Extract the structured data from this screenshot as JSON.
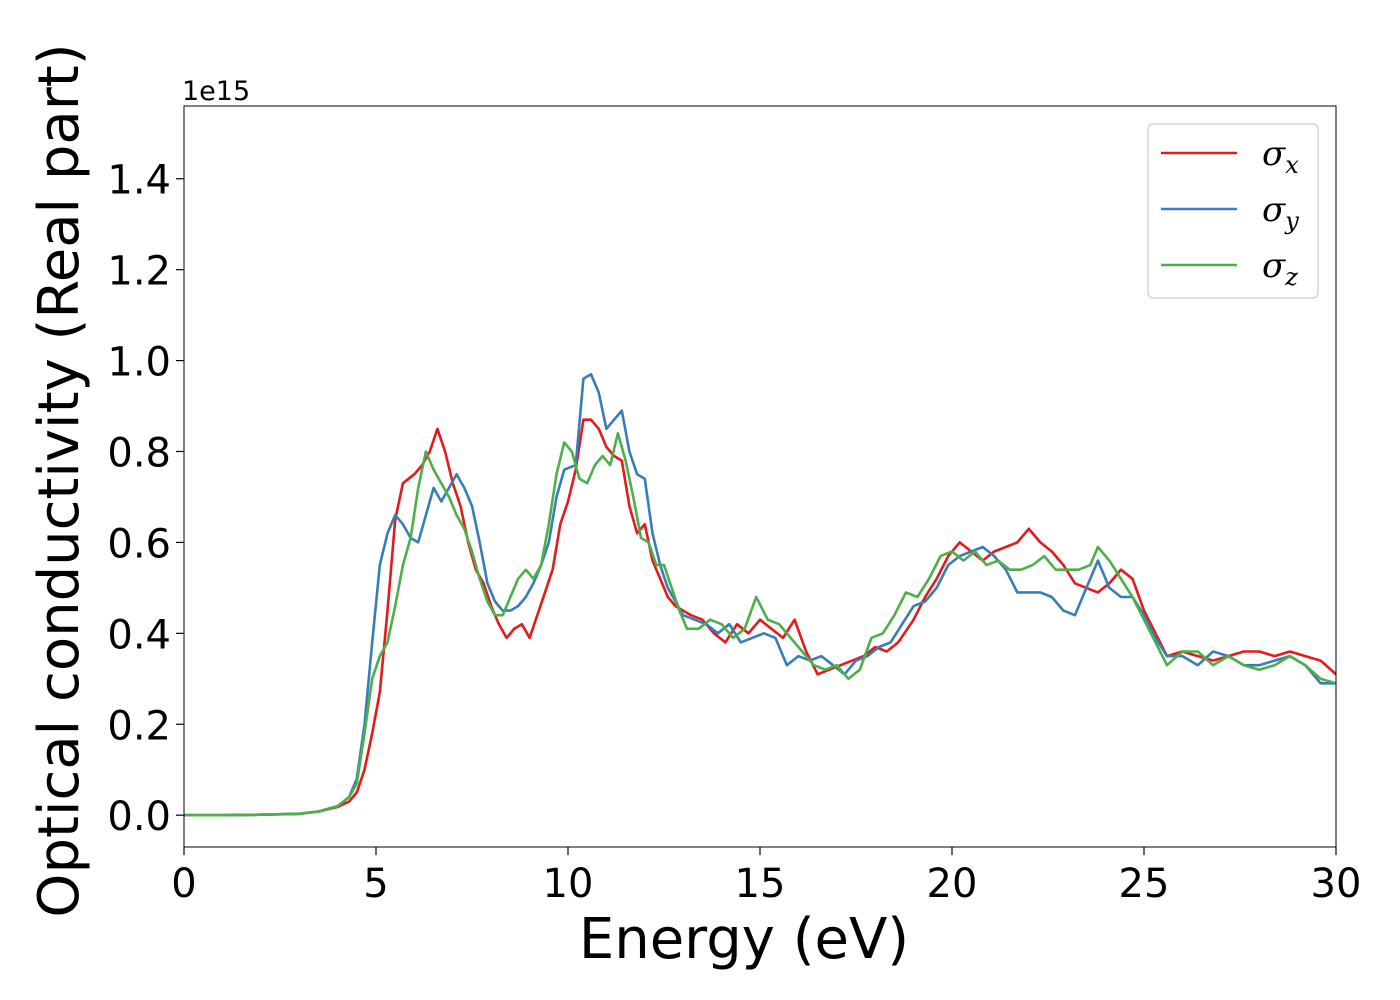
{
  "chart_data": {
    "type": "line",
    "title": "",
    "xlabel": "Energy (eV)",
    "ylabel": "Optical conductivity (Real part)",
    "y_offset_text": "1e15",
    "xlim": [
      0,
      30
    ],
    "ylim": [
      -0.07,
      1.56
    ],
    "y_scale_factor": 1000000000000000.0,
    "grid": false,
    "legend_position": "top-right",
    "x_ticks": [
      0,
      5,
      10,
      15,
      20,
      25,
      30
    ],
    "x_tick_labels": [
      "0",
      "5",
      "10",
      "15",
      "20",
      "25",
      "30"
    ],
    "y_ticks": [
      0.0,
      0.2,
      0.4,
      0.6,
      0.8,
      1.0,
      1.2,
      1.4
    ],
    "y_tick_labels": [
      "0.0",
      "0.2",
      "0.4",
      "0.6",
      "0.8",
      "1.0",
      "1.2",
      "1.4"
    ],
    "series": [
      {
        "name": "σx",
        "legend_symbol": "σ",
        "legend_subscript": "x",
        "color": "#e41a1c",
        "points": [
          [
            0,
            0
          ],
          [
            1,
            0
          ],
          [
            2,
            0.001
          ],
          [
            3,
            0.003
          ],
          [
            3.5,
            0.008
          ],
          [
            4,
            0.018
          ],
          [
            4.3,
            0.03
          ],
          [
            4.5,
            0.05
          ],
          [
            4.7,
            0.1
          ],
          [
            4.9,
            0.18
          ],
          [
            5.1,
            0.27
          ],
          [
            5.3,
            0.45
          ],
          [
            5.5,
            0.65
          ],
          [
            5.7,
            0.73
          ],
          [
            6,
            0.75
          ],
          [
            6.2,
            0.77
          ],
          [
            6.4,
            0.8
          ],
          [
            6.6,
            0.85
          ],
          [
            6.8,
            0.8
          ],
          [
            7,
            0.73
          ],
          [
            7.2,
            0.68
          ],
          [
            7.4,
            0.6
          ],
          [
            7.6,
            0.54
          ],
          [
            7.8,
            0.51
          ],
          [
            8,
            0.46
          ],
          [
            8.2,
            0.42
          ],
          [
            8.4,
            0.39
          ],
          [
            8.6,
            0.41
          ],
          [
            8.8,
            0.42
          ],
          [
            9,
            0.39
          ],
          [
            9.2,
            0.44
          ],
          [
            9.4,
            0.49
          ],
          [
            9.6,
            0.54
          ],
          [
            9.8,
            0.64
          ],
          [
            10,
            0.69
          ],
          [
            10.2,
            0.76
          ],
          [
            10.4,
            0.87
          ],
          [
            10.6,
            0.87
          ],
          [
            10.8,
            0.85
          ],
          [
            11,
            0.81
          ],
          [
            11.2,
            0.79
          ],
          [
            11.4,
            0.78
          ],
          [
            11.6,
            0.68
          ],
          [
            11.8,
            0.62
          ],
          [
            12,
            0.64
          ],
          [
            12.2,
            0.56
          ],
          [
            12.4,
            0.52
          ],
          [
            12.6,
            0.48
          ],
          [
            12.8,
            0.46
          ],
          [
            13,
            0.45
          ],
          [
            13.2,
            0.44
          ],
          [
            13.5,
            0.43
          ],
          [
            13.8,
            0.4
          ],
          [
            14.1,
            0.38
          ],
          [
            14.4,
            0.42
          ],
          [
            14.7,
            0.4
          ],
          [
            15,
            0.43
          ],
          [
            15.3,
            0.41
          ],
          [
            15.6,
            0.39
          ],
          [
            15.9,
            0.43
          ],
          [
            16.2,
            0.36
          ],
          [
            16.5,
            0.31
          ],
          [
            16.8,
            0.32
          ],
          [
            17.1,
            0.33
          ],
          [
            17.4,
            0.34
          ],
          [
            17.7,
            0.35
          ],
          [
            18,
            0.37
          ],
          [
            18.3,
            0.36
          ],
          [
            18.6,
            0.38
          ],
          [
            19,
            0.43
          ],
          [
            19.3,
            0.48
          ],
          [
            19.6,
            0.52
          ],
          [
            19.9,
            0.57
          ],
          [
            20.2,
            0.6
          ],
          [
            20.5,
            0.58
          ],
          [
            20.8,
            0.56
          ],
          [
            21.1,
            0.58
          ],
          [
            21.4,
            0.59
          ],
          [
            21.7,
            0.6
          ],
          [
            22,
            0.63
          ],
          [
            22.3,
            0.6
          ],
          [
            22.6,
            0.58
          ],
          [
            22.9,
            0.55
          ],
          [
            23.2,
            0.51
          ],
          [
            23.5,
            0.5
          ],
          [
            23.8,
            0.49
          ],
          [
            24.1,
            0.51
          ],
          [
            24.4,
            0.54
          ],
          [
            24.7,
            0.52
          ],
          [
            25,
            0.45
          ],
          [
            25.3,
            0.4
          ],
          [
            25.6,
            0.35
          ],
          [
            26,
            0.36
          ],
          [
            26.4,
            0.35
          ],
          [
            26.8,
            0.34
          ],
          [
            27.2,
            0.35
          ],
          [
            27.6,
            0.36
          ],
          [
            28,
            0.36
          ],
          [
            28.4,
            0.35
          ],
          [
            28.8,
            0.36
          ],
          [
            29.2,
            0.35
          ],
          [
            29.6,
            0.34
          ],
          [
            30,
            0.31
          ]
        ]
      },
      {
        "name": "σy",
        "legend_symbol": "σ",
        "legend_subscript": "y",
        "color": "#377eb8",
        "points": [
          [
            0,
            0
          ],
          [
            1,
            0
          ],
          [
            2,
            0.001
          ],
          [
            3,
            0.003
          ],
          [
            3.5,
            0.008
          ],
          [
            4,
            0.02
          ],
          [
            4.3,
            0.04
          ],
          [
            4.5,
            0.08
          ],
          [
            4.7,
            0.2
          ],
          [
            4.9,
            0.38
          ],
          [
            5.1,
            0.55
          ],
          [
            5.3,
            0.62
          ],
          [
            5.5,
            0.66
          ],
          [
            5.7,
            0.64
          ],
          [
            5.9,
            0.61
          ],
          [
            6.1,
            0.6
          ],
          [
            6.3,
            0.66
          ],
          [
            6.5,
            0.72
          ],
          [
            6.7,
            0.69
          ],
          [
            6.9,
            0.72
          ],
          [
            7.1,
            0.75
          ],
          [
            7.3,
            0.72
          ],
          [
            7.5,
            0.68
          ],
          [
            7.7,
            0.6
          ],
          [
            7.9,
            0.51
          ],
          [
            8.1,
            0.47
          ],
          [
            8.3,
            0.45
          ],
          [
            8.5,
            0.45
          ],
          [
            8.7,
            0.46
          ],
          [
            8.9,
            0.48
          ],
          [
            9.1,
            0.51
          ],
          [
            9.3,
            0.55
          ],
          [
            9.5,
            0.6
          ],
          [
            9.7,
            0.7
          ],
          [
            9.9,
            0.76
          ],
          [
            10.2,
            0.77
          ],
          [
            10.4,
            0.96
          ],
          [
            10.6,
            0.97
          ],
          [
            10.8,
            0.93
          ],
          [
            11,
            0.85
          ],
          [
            11.2,
            0.87
          ],
          [
            11.4,
            0.89
          ],
          [
            11.6,
            0.8
          ],
          [
            11.8,
            0.75
          ],
          [
            12,
            0.74
          ],
          [
            12.2,
            0.62
          ],
          [
            12.4,
            0.55
          ],
          [
            12.6,
            0.5
          ],
          [
            12.8,
            0.47
          ],
          [
            13,
            0.44
          ],
          [
            13.3,
            0.43
          ],
          [
            13.6,
            0.42
          ],
          [
            13.9,
            0.4
          ],
          [
            14.2,
            0.42
          ],
          [
            14.5,
            0.38
          ],
          [
            14.8,
            0.39
          ],
          [
            15.1,
            0.4
          ],
          [
            15.4,
            0.39
          ],
          [
            15.7,
            0.33
          ],
          [
            16,
            0.35
          ],
          [
            16.3,
            0.34
          ],
          [
            16.6,
            0.35
          ],
          [
            16.9,
            0.33
          ],
          [
            17.2,
            0.31
          ],
          [
            17.5,
            0.34
          ],
          [
            17.8,
            0.35
          ],
          [
            18.1,
            0.37
          ],
          [
            18.4,
            0.38
          ],
          [
            18.7,
            0.42
          ],
          [
            19,
            0.46
          ],
          [
            19.3,
            0.47
          ],
          [
            19.6,
            0.5
          ],
          [
            19.9,
            0.55
          ],
          [
            20.2,
            0.57
          ],
          [
            20.5,
            0.58
          ],
          [
            20.8,
            0.59
          ],
          [
            21.1,
            0.57
          ],
          [
            21.4,
            0.54
          ],
          [
            21.7,
            0.49
          ],
          [
            22,
            0.49
          ],
          [
            22.3,
            0.49
          ],
          [
            22.6,
            0.48
          ],
          [
            22.9,
            0.45
          ],
          [
            23.2,
            0.44
          ],
          [
            23.5,
            0.5
          ],
          [
            23.8,
            0.56
          ],
          [
            24.1,
            0.5
          ],
          [
            24.4,
            0.48
          ],
          [
            24.7,
            0.48
          ],
          [
            25,
            0.44
          ],
          [
            25.3,
            0.39
          ],
          [
            25.6,
            0.35
          ],
          [
            26,
            0.35
          ],
          [
            26.4,
            0.33
          ],
          [
            26.8,
            0.36
          ],
          [
            27.2,
            0.35
          ],
          [
            27.6,
            0.33
          ],
          [
            28,
            0.33
          ],
          [
            28.4,
            0.34
          ],
          [
            28.8,
            0.35
          ],
          [
            29.2,
            0.33
          ],
          [
            29.6,
            0.29
          ],
          [
            30,
            0.29
          ]
        ]
      },
      {
        "name": "σz",
        "legend_symbol": "σ",
        "legend_subscript": "z",
        "color": "#4daf4a",
        "points": [
          [
            0,
            0
          ],
          [
            1,
            0
          ],
          [
            2,
            0.001
          ],
          [
            3,
            0.003
          ],
          [
            3.5,
            0.008
          ],
          [
            4,
            0.02
          ],
          [
            4.3,
            0.04
          ],
          [
            4.5,
            0.07
          ],
          [
            4.7,
            0.18
          ],
          [
            4.9,
            0.3
          ],
          [
            5.1,
            0.35
          ],
          [
            5.3,
            0.38
          ],
          [
            5.5,
            0.46
          ],
          [
            5.7,
            0.55
          ],
          [
            5.9,
            0.61
          ],
          [
            6.1,
            0.72
          ],
          [
            6.3,
            0.8
          ],
          [
            6.5,
            0.76
          ],
          [
            6.7,
            0.73
          ],
          [
            6.9,
            0.7
          ],
          [
            7.1,
            0.66
          ],
          [
            7.3,
            0.63
          ],
          [
            7.5,
            0.58
          ],
          [
            7.7,
            0.52
          ],
          [
            7.9,
            0.47
          ],
          [
            8.1,
            0.44
          ],
          [
            8.3,
            0.44
          ],
          [
            8.5,
            0.48
          ],
          [
            8.7,
            0.52
          ],
          [
            8.9,
            0.54
          ],
          [
            9.1,
            0.52
          ],
          [
            9.3,
            0.55
          ],
          [
            9.5,
            0.64
          ],
          [
            9.7,
            0.75
          ],
          [
            9.9,
            0.82
          ],
          [
            10.1,
            0.8
          ],
          [
            10.3,
            0.74
          ],
          [
            10.5,
            0.73
          ],
          [
            10.7,
            0.77
          ],
          [
            10.9,
            0.79
          ],
          [
            11.1,
            0.77
          ],
          [
            11.3,
            0.84
          ],
          [
            11.5,
            0.78
          ],
          [
            11.7,
            0.7
          ],
          [
            11.9,
            0.61
          ],
          [
            12.1,
            0.6
          ],
          [
            12.3,
            0.55
          ],
          [
            12.5,
            0.55
          ],
          [
            12.7,
            0.5
          ],
          [
            12.9,
            0.45
          ],
          [
            13.1,
            0.41
          ],
          [
            13.4,
            0.41
          ],
          [
            13.7,
            0.43
          ],
          [
            14,
            0.42
          ],
          [
            14.3,
            0.39
          ],
          [
            14.6,
            0.41
          ],
          [
            14.9,
            0.48
          ],
          [
            15.2,
            0.43
          ],
          [
            15.5,
            0.42
          ],
          [
            15.8,
            0.39
          ],
          [
            16.1,
            0.36
          ],
          [
            16.4,
            0.33
          ],
          [
            16.7,
            0.32
          ],
          [
            17,
            0.33
          ],
          [
            17.3,
            0.3
          ],
          [
            17.6,
            0.32
          ],
          [
            17.9,
            0.39
          ],
          [
            18.2,
            0.4
          ],
          [
            18.5,
            0.44
          ],
          [
            18.8,
            0.49
          ],
          [
            19.1,
            0.48
          ],
          [
            19.4,
            0.52
          ],
          [
            19.7,
            0.57
          ],
          [
            20,
            0.58
          ],
          [
            20.3,
            0.56
          ],
          [
            20.6,
            0.58
          ],
          [
            20.9,
            0.55
          ],
          [
            21.2,
            0.56
          ],
          [
            21.5,
            0.54
          ],
          [
            21.8,
            0.54
          ],
          [
            22.1,
            0.55
          ],
          [
            22.4,
            0.57
          ],
          [
            22.7,
            0.54
          ],
          [
            23,
            0.54
          ],
          [
            23.3,
            0.54
          ],
          [
            23.6,
            0.55
          ],
          [
            23.8,
            0.59
          ],
          [
            24.1,
            0.56
          ],
          [
            24.4,
            0.52
          ],
          [
            24.7,
            0.48
          ],
          [
            25,
            0.43
          ],
          [
            25.3,
            0.38
          ],
          [
            25.6,
            0.33
          ],
          [
            26,
            0.36
          ],
          [
            26.4,
            0.36
          ],
          [
            26.8,
            0.33
          ],
          [
            27.2,
            0.35
          ],
          [
            27.6,
            0.33
          ],
          [
            28,
            0.32
          ],
          [
            28.4,
            0.33
          ],
          [
            28.8,
            0.35
          ],
          [
            29.2,
            0.33
          ],
          [
            29.6,
            0.3
          ],
          [
            30,
            0.29
          ]
        ]
      }
    ]
  }
}
